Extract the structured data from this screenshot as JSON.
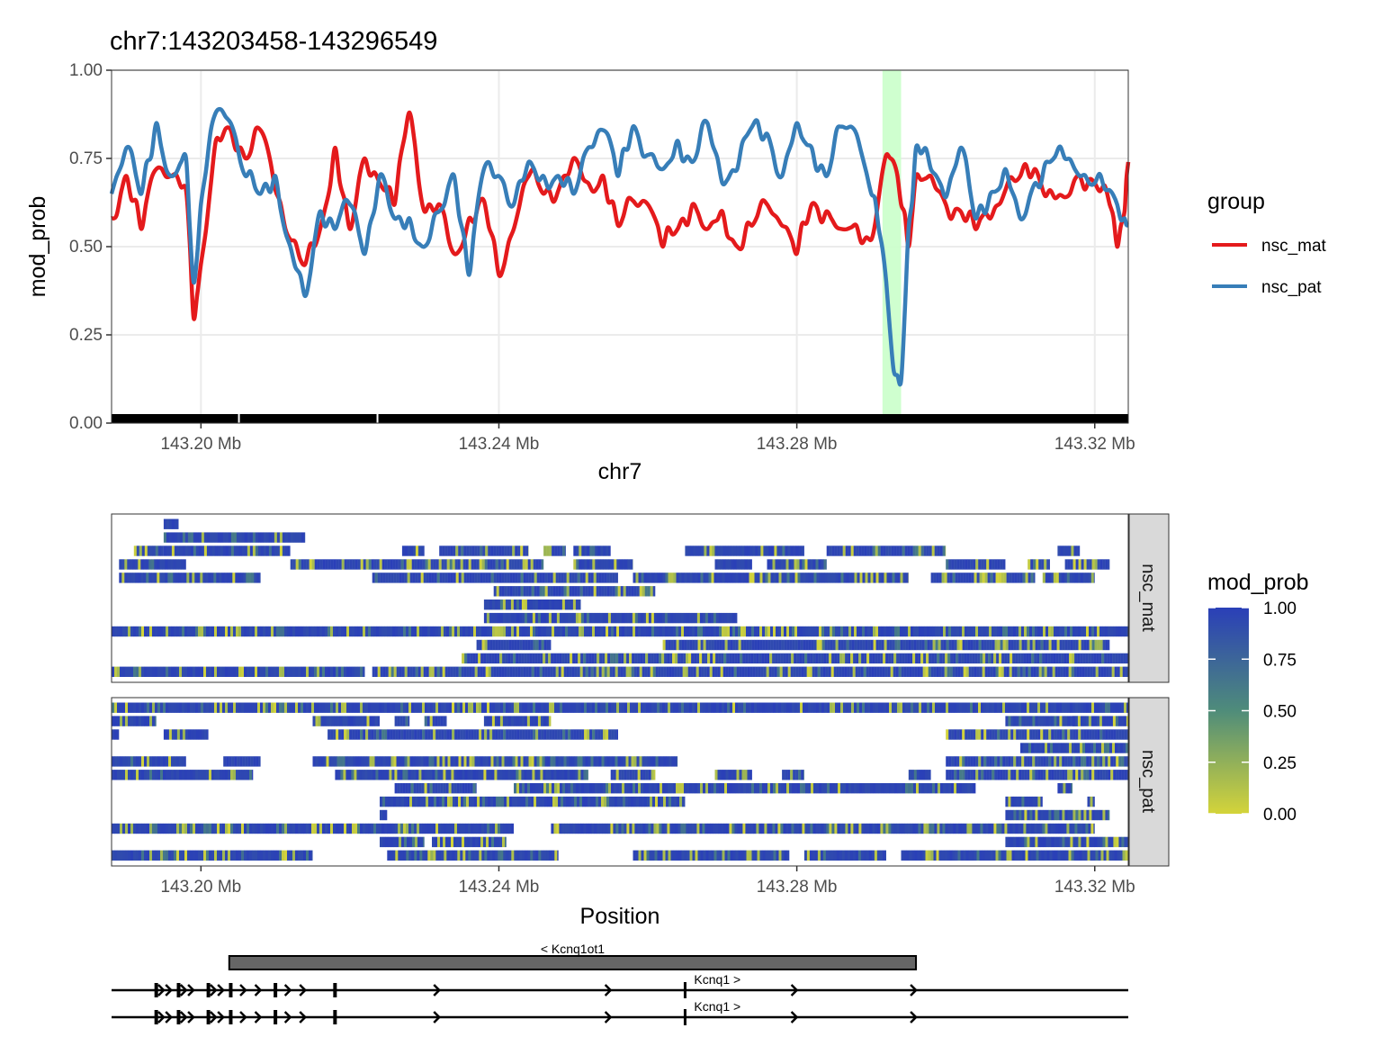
{
  "chart_data": [
    {
      "type": "line",
      "title": "chr7:143203458-143296549",
      "xlabel": "chr7",
      "ylabel": "mod_prob",
      "xlim_mb": [
        143.188,
        143.3245
      ],
      "ylim": [
        0,
        1
      ],
      "x_ticks": [
        143.2,
        143.24,
        143.28,
        143.32
      ],
      "x_tick_labels": [
        "143.20 Mb",
        "143.24 Mb",
        "143.28 Mb",
        "143.32 Mb"
      ],
      "y_ticks": [
        0,
        0.25,
        0.5,
        0.75,
        1
      ],
      "y_tick_labels": [
        "0.00",
        "0.25",
        "0.50",
        "0.75",
        "1.00"
      ],
      "grid": true,
      "highlight_region_mb": [
        143.2915,
        143.294
      ],
      "highlight_color": "#ccffcc",
      "cpg_rug_gaps_mb": [
        143.2051,
        143.2237
      ],
      "legend": {
        "title": "group",
        "position": "right"
      },
      "series": [
        {
          "name": "nsc_mat",
          "color": "#e41a1c",
          "x": [
            143.188,
            143.19,
            143.192,
            143.194,
            143.196,
            143.198,
            143.199,
            143.2,
            143.202,
            143.204,
            143.206,
            143.208,
            143.21,
            143.212,
            143.214,
            143.216,
            143.218,
            143.22,
            143.222,
            143.224,
            143.226,
            143.228,
            143.23,
            143.232,
            143.234,
            143.236,
            143.238,
            143.24,
            143.242,
            143.244,
            143.246,
            143.248,
            143.25,
            143.252,
            143.254,
            143.256,
            143.258,
            143.26,
            143.262,
            143.264,
            143.266,
            143.268,
            143.27,
            143.272,
            143.274,
            143.276,
            143.278,
            143.28,
            143.282,
            143.284,
            143.286,
            143.288,
            143.29,
            143.291,
            143.292,
            143.293,
            143.294,
            143.295,
            143.296,
            143.298,
            143.3,
            143.302,
            143.304,
            143.306,
            143.308,
            143.31,
            143.312,
            143.314,
            143.316,
            143.318,
            143.32,
            143.322,
            143.323,
            143.324,
            143.3245
          ],
          "values": [
            0.58,
            0.7,
            0.55,
            0.72,
            0.7,
            0.66,
            0.3,
            0.45,
            0.8,
            0.83,
            0.75,
            0.83,
            0.66,
            0.52,
            0.45,
            0.55,
            0.78,
            0.55,
            0.75,
            0.68,
            0.62,
            0.88,
            0.6,
            0.62,
            0.48,
            0.58,
            0.63,
            0.42,
            0.55,
            0.7,
            0.65,
            0.66,
            0.75,
            0.68,
            0.7,
            0.56,
            0.63,
            0.62,
            0.5,
            0.55,
            0.62,
            0.55,
            0.6,
            0.5,
            0.56,
            0.62,
            0.56,
            0.48,
            0.62,
            0.6,
            0.55,
            0.56,
            0.52,
            0.64,
            0.76,
            0.74,
            0.62,
            0.5,
            0.7,
            0.7,
            0.62,
            0.6,
            0.55,
            0.58,
            0.66,
            0.7,
            0.72,
            0.66,
            0.64,
            0.7,
            0.68,
            0.62,
            0.5,
            0.6,
            0.74
          ]
        },
        {
          "name": "nsc_pat",
          "color": "#377eb8",
          "x": [
            143.188,
            143.19,
            143.192,
            143.194,
            143.196,
            143.198,
            143.199,
            143.2,
            143.202,
            143.204,
            143.206,
            143.208,
            143.21,
            143.212,
            143.214,
            143.216,
            143.218,
            143.22,
            143.222,
            143.224,
            143.226,
            143.228,
            143.23,
            143.232,
            143.234,
            143.236,
            143.238,
            143.24,
            143.242,
            143.244,
            143.246,
            143.248,
            143.25,
            143.252,
            143.254,
            143.256,
            143.258,
            143.26,
            143.262,
            143.264,
            143.266,
            143.268,
            143.27,
            143.272,
            143.274,
            143.276,
            143.278,
            143.28,
            143.282,
            143.284,
            143.286,
            143.288,
            143.29,
            143.291,
            143.292,
            143.293,
            143.294,
            143.295,
            143.296,
            143.298,
            143.3,
            143.302,
            143.304,
            143.306,
            143.308,
            143.31,
            143.312,
            143.314,
            143.316,
            143.318,
            143.32,
            143.322,
            143.323,
            143.324,
            143.3245
          ],
          "values": [
            0.65,
            0.78,
            0.65,
            0.85,
            0.7,
            0.75,
            0.4,
            0.62,
            0.88,
            0.85,
            0.7,
            0.65,
            0.7,
            0.5,
            0.36,
            0.6,
            0.55,
            0.62,
            0.48,
            0.7,
            0.58,
            0.58,
            0.5,
            0.6,
            0.7,
            0.42,
            0.72,
            0.7,
            0.62,
            0.74,
            0.7,
            0.7,
            0.65,
            0.78,
            0.83,
            0.7,
            0.84,
            0.76,
            0.72,
            0.8,
            0.74,
            0.85,
            0.68,
            0.72,
            0.84,
            0.82,
            0.7,
            0.85,
            0.78,
            0.7,
            0.84,
            0.82,
            0.65,
            0.55,
            0.4,
            0.15,
            0.12,
            0.55,
            0.78,
            0.72,
            0.64,
            0.78,
            0.58,
            0.65,
            0.72,
            0.58,
            0.68,
            0.74,
            0.75,
            0.7,
            0.68,
            0.66,
            0.62,
            0.58,
            0.56
          ]
        }
      ]
    },
    {
      "type": "heatmap",
      "xlabel": "Position",
      "xlim_mb": [
        143.188,
        143.3245
      ],
      "x_ticks": [
        143.2,
        143.24,
        143.28,
        143.32
      ],
      "x_tick_labels": [
        "143.20 Mb",
        "143.24 Mb",
        "143.28 Mb",
        "143.32 Mb"
      ],
      "colorbar": {
        "title": "mod_prob",
        "ticks": [
          0,
          0.25,
          0.5,
          0.75,
          1
        ],
        "tick_labels": [
          "0.00",
          "0.25",
          "0.50",
          "0.75",
          "1.00"
        ],
        "low_color": "#d4d43a",
        "mid_color": "#4f8c7a",
        "high_color": "#2a3fb8"
      },
      "facets": [
        {
          "name": "nsc_mat",
          "reads": [
            [
              [
                143.195,
                143.197
              ]
            ],
            [
              [
                143.195,
                143.214
              ]
            ],
            [
              [
                143.191,
                143.195
              ],
              [
                143.195,
                143.212
              ],
              [
                143.227,
                143.23
              ],
              [
                143.232,
                143.244
              ],
              [
                143.246,
                143.249
              ],
              [
                143.25,
                143.255
              ],
              [
                143.265,
                143.281
              ],
              [
                143.284,
                143.3
              ],
              [
                143.315,
                143.318
              ]
            ],
            [
              [
                143.189,
                143.198
              ],
              [
                143.212,
                143.246
              ],
              [
                143.25,
                143.258
              ],
              [
                143.269,
                143.274
              ],
              [
                143.276,
                143.284
              ],
              [
                143.3,
                143.308
              ],
              [
                143.311,
                143.314
              ],
              [
                143.316,
                143.322
              ]
            ],
            [
              [
                143.189,
                143.208
              ],
              [
                143.223,
                143.256
              ],
              [
                143.258,
                143.295
              ],
              [
                143.298,
                143.312
              ],
              [
                143.313,
                143.32
              ]
            ],
            [
              [
                143.2393,
                143.261
              ]
            ],
            [
              [
                143.238,
                143.251
              ]
            ],
            [
              [
                143.238,
                143.272
              ]
            ],
            [
              [
                143.188,
                143.3245
              ]
            ],
            [
              [
                143.237,
                143.247
              ],
              [
                143.262,
                143.322
              ]
            ],
            [
              [
                143.235,
                143.3245
              ]
            ],
            [
              [
                143.188,
                143.222
              ],
              [
                143.223,
                143.3245
              ]
            ]
          ]
        },
        {
          "name": "nsc_pat",
          "reads": [
            [
              [
                143.188,
                143.3245
              ]
            ],
            [
              [
                143.188,
                143.194
              ],
              [
                143.215,
                143.224
              ],
              [
                143.226,
                143.228
              ],
              [
                143.23,
                143.233
              ],
              [
                143.238,
                143.247
              ],
              [
                143.308,
                143.318
              ],
              [
                143.317,
                143.3245
              ]
            ],
            [
              [
                143.188,
                143.189
              ],
              [
                143.195,
                143.201
              ],
              [
                143.217,
                143.256
              ],
              [
                143.3,
                143.3245
              ]
            ],
            [
              [
                143.31,
                143.3245
              ]
            ],
            [
              [
                143.188,
                143.198
              ],
              [
                143.203,
                143.208
              ],
              [
                143.215,
                143.264
              ],
              [
                143.3,
                143.3245
              ]
            ],
            [
              [
                143.188,
                143.207
              ],
              [
                143.218,
                143.252
              ],
              [
                143.255,
                143.261
              ],
              [
                143.269,
                143.274
              ],
              [
                143.278,
                143.281
              ],
              [
                143.295,
                143.298
              ],
              [
                143.3,
                143.3245
              ]
            ],
            [
              [
                143.226,
                143.237
              ],
              [
                143.242,
                143.304
              ],
              [
                143.315,
                143.317
              ]
            ],
            [
              [
                143.224,
                143.265
              ],
              [
                143.308,
                143.313
              ],
              [
                143.319,
                143.32
              ]
            ],
            [
              [
                143.224,
                143.225
              ],
              [
                143.308,
                143.322
              ]
            ],
            [
              [
                143.188,
                143.242
              ],
              [
                143.247,
                143.32
              ]
            ],
            [
              [
                143.224,
                143.23
              ],
              [
                143.231,
                143.241
              ],
              [
                143.308,
                143.3245
              ]
            ],
            [
              [
                143.188,
                143.215
              ],
              [
                143.225,
                143.248
              ],
              [
                143.258,
                143.279
              ],
              [
                143.281,
                143.292
              ],
              [
                143.294,
                143.3245
              ]
            ]
          ]
        }
      ]
    },
    {
      "type": "gene_track",
      "xlim_mb": [
        143.188,
        143.3245
      ],
      "genes": [
        {
          "label": "< Kcnq1ot1",
          "start_mb": 143.2038,
          "end_mb": 143.296,
          "type": "box"
        },
        {
          "label": "Kcnq1 >",
          "start_mb": 143.188,
          "end_mb": 143.3245,
          "type": "line",
          "exon_marks_mb": [
            143.194,
            143.195,
            143.196,
            143.197,
            143.198,
            143.199,
            143.201,
            143.202,
            143.203,
            143.204,
            143.206,
            143.208,
            143.21,
            143.212,
            143.214,
            143.218,
            143.232,
            143.255,
            143.265,
            143.28,
            143.296
          ]
        },
        {
          "label": "Kcnq1 >",
          "start_mb": 143.188,
          "end_mb": 143.3245,
          "type": "line",
          "exon_marks_mb": [
            143.194,
            143.195,
            143.196,
            143.197,
            143.198,
            143.199,
            143.201,
            143.202,
            143.203,
            143.204,
            143.206,
            143.208,
            143.21,
            143.212,
            143.214,
            143.218,
            143.232,
            143.255,
            143.265,
            143.28,
            143.296
          ]
        }
      ]
    }
  ]
}
